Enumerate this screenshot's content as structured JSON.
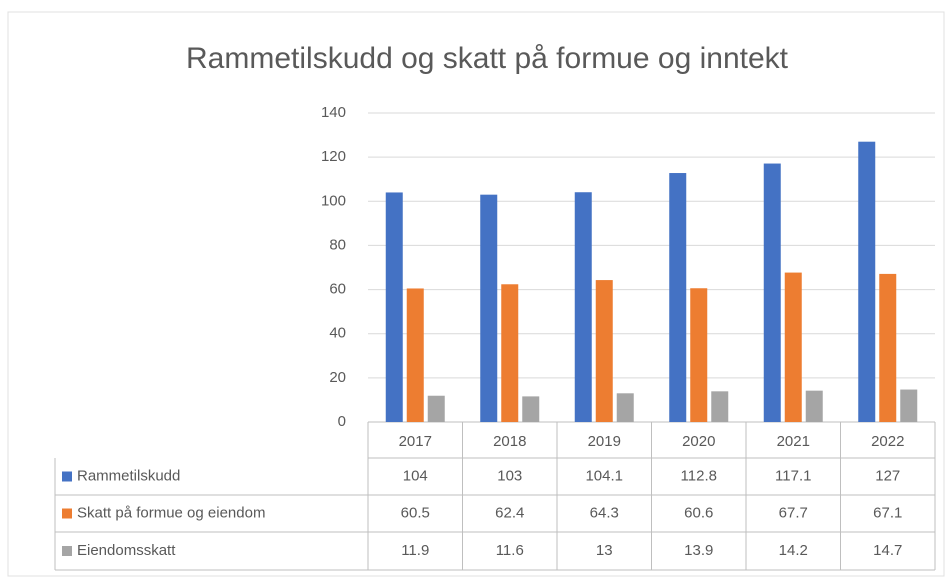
{
  "chart_data": {
    "type": "bar",
    "title": "Rammetilskudd og skatt på formue og inntekt",
    "categories": [
      "2017",
      "2018",
      "2019",
      "2020",
      "2021",
      "2022"
    ],
    "series": [
      {
        "name": "Rammetilskudd",
        "color": "#4472c4",
        "values": [
          104,
          103,
          104.1,
          112.8,
          117.1,
          127
        ]
      },
      {
        "name": "Skatt på formue og eiendom",
        "color": "#ed7d31",
        "values": [
          60.5,
          62.4,
          64.3,
          60.6,
          67.7,
          67.1
        ]
      },
      {
        "name": "Eiendomsskatt",
        "color": "#a5a5a5",
        "values": [
          11.9,
          11.6,
          13,
          13.9,
          14.2,
          14.7
        ]
      }
    ],
    "ylim": [
      0,
      140
    ],
    "yticks": [
      0,
      20,
      40,
      60,
      80,
      100,
      120,
      140
    ],
    "grid": true
  }
}
